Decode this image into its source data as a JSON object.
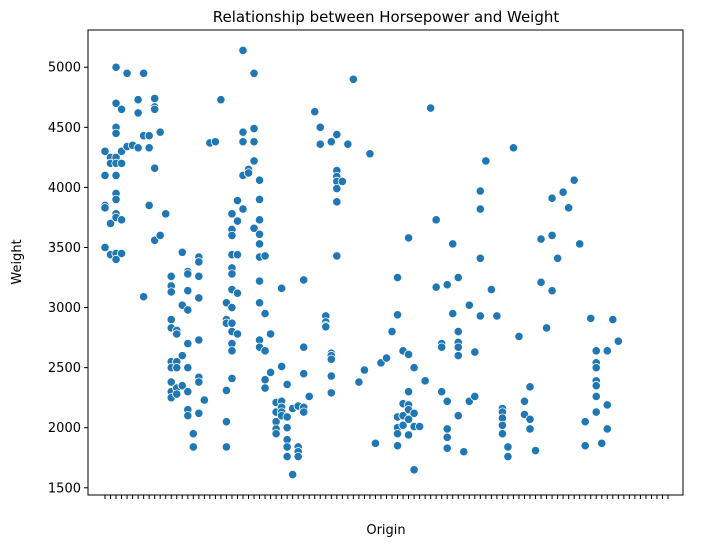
{
  "chart_data": {
    "type": "scatter",
    "title": "Relationship between Horsepower and Weight",
    "xlabel": "Origin",
    "ylabel": "Weight",
    "ylim": [
      1440,
      5310
    ],
    "yticks": [
      1500,
      2000,
      2500,
      3000,
      3500,
      4000,
      4500,
      5000
    ],
    "grid": false,
    "legend": "none",
    "point_color": "#1f77b4",
    "x_categories": 103,
    "series": [
      {
        "points": [
          [
            0,
            4300
          ],
          [
            0,
            3850
          ],
          [
            0,
            4100
          ],
          [
            0,
            3500
          ],
          [
            0,
            3830
          ],
          [
            1,
            4250
          ],
          [
            1,
            3700
          ],
          [
            1,
            4200
          ],
          [
            1,
            3440
          ],
          [
            2,
            5000
          ],
          [
            2,
            4700
          ],
          [
            2,
            4500
          ],
          [
            2,
            4450
          ],
          [
            2,
            4250
          ],
          [
            2,
            4200
          ],
          [
            2,
            4100
          ],
          [
            2,
            3950
          ],
          [
            2,
            3900
          ],
          [
            2,
            3780
          ],
          [
            2,
            3750
          ],
          [
            2,
            3450
          ],
          [
            2,
            3400
          ],
          [
            3,
            4650
          ],
          [
            3,
            4300
          ],
          [
            3,
            4200
          ],
          [
            3,
            3730
          ],
          [
            3,
            3450
          ],
          [
            4,
            4950
          ],
          [
            4,
            4340
          ],
          [
            5,
            4350
          ],
          [
            6,
            4730
          ],
          [
            6,
            4620
          ],
          [
            6,
            4330
          ],
          [
            7,
            4950
          ],
          [
            7,
            4430
          ],
          [
            7,
            3090
          ],
          [
            8,
            4430
          ],
          [
            8,
            4330
          ],
          [
            8,
            3850
          ],
          [
            9,
            4740
          ],
          [
            9,
            4670
          ],
          [
            9,
            4650
          ],
          [
            9,
            4160
          ],
          [
            9,
            3560
          ],
          [
            10,
            4460
          ],
          [
            10,
            3600
          ],
          [
            11,
            3780
          ],
          [
            12,
            3260
          ],
          [
            12,
            3180
          ],
          [
            12,
            3130
          ],
          [
            12,
            2900
          ],
          [
            12,
            2830
          ],
          [
            12,
            2550
          ],
          [
            12,
            2500
          ],
          [
            12,
            2380
          ],
          [
            12,
            2300
          ],
          [
            12,
            2250
          ],
          [
            13,
            2810
          ],
          [
            13,
            2780
          ],
          [
            13,
            2550
          ],
          [
            13,
            2500
          ],
          [
            13,
            2330
          ],
          [
            13,
            2280
          ],
          [
            14,
            3460
          ],
          [
            14,
            3020
          ],
          [
            14,
            2600
          ],
          [
            14,
            2350
          ],
          [
            15,
            3300
          ],
          [
            15,
            3280
          ],
          [
            15,
            3140
          ],
          [
            15,
            2980
          ],
          [
            15,
            2700
          ],
          [
            15,
            2500
          ],
          [
            15,
            2300
          ],
          [
            15,
            2150
          ],
          [
            15,
            2100
          ],
          [
            16,
            1950
          ],
          [
            16,
            1840
          ],
          [
            17,
            3420
          ],
          [
            17,
            3380
          ],
          [
            17,
            3260
          ],
          [
            17,
            3080
          ],
          [
            17,
            2730
          ],
          [
            17,
            2420
          ],
          [
            17,
            2380
          ],
          [
            17,
            2120
          ],
          [
            18,
            2230
          ],
          [
            19,
            4370
          ],
          [
            20,
            4380
          ],
          [
            21,
            4730
          ],
          [
            22,
            3040
          ],
          [
            22,
            2900
          ],
          [
            22,
            2870
          ],
          [
            22,
            2310
          ],
          [
            22,
            2050
          ],
          [
            22,
            1840
          ],
          [
            23,
            3780
          ],
          [
            23,
            3650
          ],
          [
            23,
            3600
          ],
          [
            23,
            3440
          ],
          [
            23,
            3330
          ],
          [
            23,
            3280
          ],
          [
            23,
            3150
          ],
          [
            23,
            3000
          ],
          [
            23,
            2870
          ],
          [
            23,
            2800
          ],
          [
            23,
            2700
          ],
          [
            23,
            2640
          ],
          [
            23,
            2410
          ],
          [
            24,
            3890
          ],
          [
            24,
            3720
          ],
          [
            24,
            3440
          ],
          [
            24,
            3120
          ],
          [
            24,
            2780
          ],
          [
            25,
            5140
          ],
          [
            25,
            4460
          ],
          [
            25,
            4380
          ],
          [
            25,
            4100
          ],
          [
            25,
            3820
          ],
          [
            26,
            4150
          ],
          [
            26,
            4120
          ],
          [
            27,
            4950
          ],
          [
            27,
            4490
          ],
          [
            27,
            4380
          ],
          [
            27,
            4220
          ],
          [
            27,
            3660
          ],
          [
            28,
            4060
          ],
          [
            28,
            3900
          ],
          [
            28,
            3730
          ],
          [
            28,
            3610
          ],
          [
            28,
            3530
          ],
          [
            28,
            3420
          ],
          [
            28,
            3220
          ],
          [
            28,
            3040
          ],
          [
            28,
            2730
          ],
          [
            28,
            2670
          ],
          [
            29,
            3430
          ],
          [
            29,
            2950
          ],
          [
            29,
            2640
          ],
          [
            29,
            2400
          ],
          [
            29,
            2330
          ],
          [
            30,
            2780
          ],
          [
            30,
            2460
          ],
          [
            31,
            2210
          ],
          [
            31,
            2130
          ],
          [
            31,
            2050
          ],
          [
            31,
            1990
          ],
          [
            31,
            1950
          ],
          [
            32,
            3160
          ],
          [
            32,
            2510
          ],
          [
            32,
            2220
          ],
          [
            32,
            2170
          ],
          [
            32,
            2130
          ],
          [
            32,
            2100
          ],
          [
            33,
            2360
          ],
          [
            33,
            2090
          ],
          [
            33,
            2000
          ],
          [
            33,
            1900
          ],
          [
            33,
            1840
          ],
          [
            33,
            1760
          ],
          [
            34,
            2160
          ],
          [
            34,
            1610
          ],
          [
            35,
            2180
          ],
          [
            35,
            1840
          ],
          [
            35,
            1800
          ],
          [
            35,
            1760
          ],
          [
            36,
            3230
          ],
          [
            36,
            2670
          ],
          [
            36,
            2450
          ],
          [
            36,
            2170
          ],
          [
            36,
            2130
          ],
          [
            37,
            2260
          ],
          [
            38,
            4630
          ],
          [
            39,
            4500
          ],
          [
            39,
            4360
          ],
          [
            40,
            2930
          ],
          [
            40,
            2880
          ],
          [
            40,
            2850
          ],
          [
            40,
            2840
          ],
          [
            41,
            4380
          ],
          [
            41,
            2620
          ],
          [
            41,
            2600
          ],
          [
            41,
            2570
          ],
          [
            41,
            2430
          ],
          [
            41,
            2290
          ],
          [
            42,
            4440
          ],
          [
            42,
            4140
          ],
          [
            42,
            4090
          ],
          [
            42,
            4050
          ],
          [
            42,
            3990
          ],
          [
            42,
            3880
          ],
          [
            42,
            3430
          ],
          [
            43,
            4050
          ],
          [
            44,
            4360
          ],
          [
            45,
            4900
          ],
          [
            46,
            2380
          ],
          [
            47,
            2480
          ],
          [
            48,
            4280
          ],
          [
            49,
            1870
          ],
          [
            50,
            2540
          ],
          [
            51,
            2580
          ],
          [
            52,
            2800
          ],
          [
            53,
            3250
          ],
          [
            53,
            2940
          ],
          [
            53,
            2090
          ],
          [
            53,
            2000
          ],
          [
            53,
            1950
          ],
          [
            53,
            1850
          ],
          [
            54,
            2640
          ],
          [
            54,
            2200
          ],
          [
            54,
            2100
          ],
          [
            54,
            2020
          ],
          [
            55,
            3580
          ],
          [
            55,
            2610
          ],
          [
            55,
            2300
          ],
          [
            55,
            2190
          ],
          [
            55,
            2070
          ],
          [
            55,
            1940
          ],
          [
            55,
            2150
          ],
          [
            56,
            2500
          ],
          [
            56,
            2120
          ],
          [
            56,
            2010
          ],
          [
            56,
            1650
          ],
          [
            57,
            2010
          ],
          [
            58,
            2390
          ],
          [
            59,
            4660
          ],
          [
            60,
            3730
          ],
          [
            60,
            3170
          ],
          [
            61,
            2700
          ],
          [
            61,
            2670
          ],
          [
            61,
            2300
          ],
          [
            62,
            3190
          ],
          [
            62,
            2220
          ],
          [
            62,
            1990
          ],
          [
            62,
            1920
          ],
          [
            62,
            1830
          ],
          [
            63,
            3530
          ],
          [
            63,
            2950
          ],
          [
            64,
            3250
          ],
          [
            64,
            2800
          ],
          [
            64,
            2710
          ],
          [
            64,
            2670
          ],
          [
            64,
            2600
          ],
          [
            64,
            2100
          ],
          [
            65,
            1800
          ],
          [
            66,
            3020
          ],
          [
            66,
            2220
          ],
          [
            67,
            2630
          ],
          [
            67,
            2260
          ],
          [
            68,
            3970
          ],
          [
            68,
            3820
          ],
          [
            68,
            3410
          ],
          [
            68,
            2930
          ],
          [
            69,
            4220
          ],
          [
            70,
            3150
          ],
          [
            71,
            2930
          ],
          [
            72,
            2160
          ],
          [
            72,
            2130
          ],
          [
            72,
            2080
          ],
          [
            72,
            2020
          ],
          [
            72,
            1950
          ],
          [
            73,
            1840
          ],
          [
            73,
            1760
          ],
          [
            74,
            4330
          ],
          [
            75,
            2760
          ],
          [
            76,
            2220
          ],
          [
            76,
            2110
          ],
          [
            77,
            2340
          ],
          [
            77,
            2070
          ],
          [
            77,
            1990
          ],
          [
            78,
            1810
          ],
          [
            79,
            3570
          ],
          [
            79,
            3210
          ],
          [
            80,
            2830
          ],
          [
            81,
            3910
          ],
          [
            81,
            3600
          ],
          [
            81,
            3140
          ],
          [
            82,
            3410
          ],
          [
            83,
            3960
          ],
          [
            84,
            3830
          ],
          [
            85,
            4060
          ],
          [
            86,
            3530
          ],
          [
            87,
            2050
          ],
          [
            87,
            1850
          ],
          [
            88,
            2910
          ],
          [
            89,
            2640
          ],
          [
            89,
            2540
          ],
          [
            89,
            2500
          ],
          [
            89,
            2390
          ],
          [
            89,
            2350
          ],
          [
            89,
            2260
          ],
          [
            89,
            2130
          ],
          [
            90,
            1870
          ],
          [
            91,
            2640
          ],
          [
            91,
            2190
          ],
          [
            91,
            1990
          ],
          [
            92,
            2900
          ],
          [
            93,
            2720
          ]
        ]
      }
    ]
  }
}
